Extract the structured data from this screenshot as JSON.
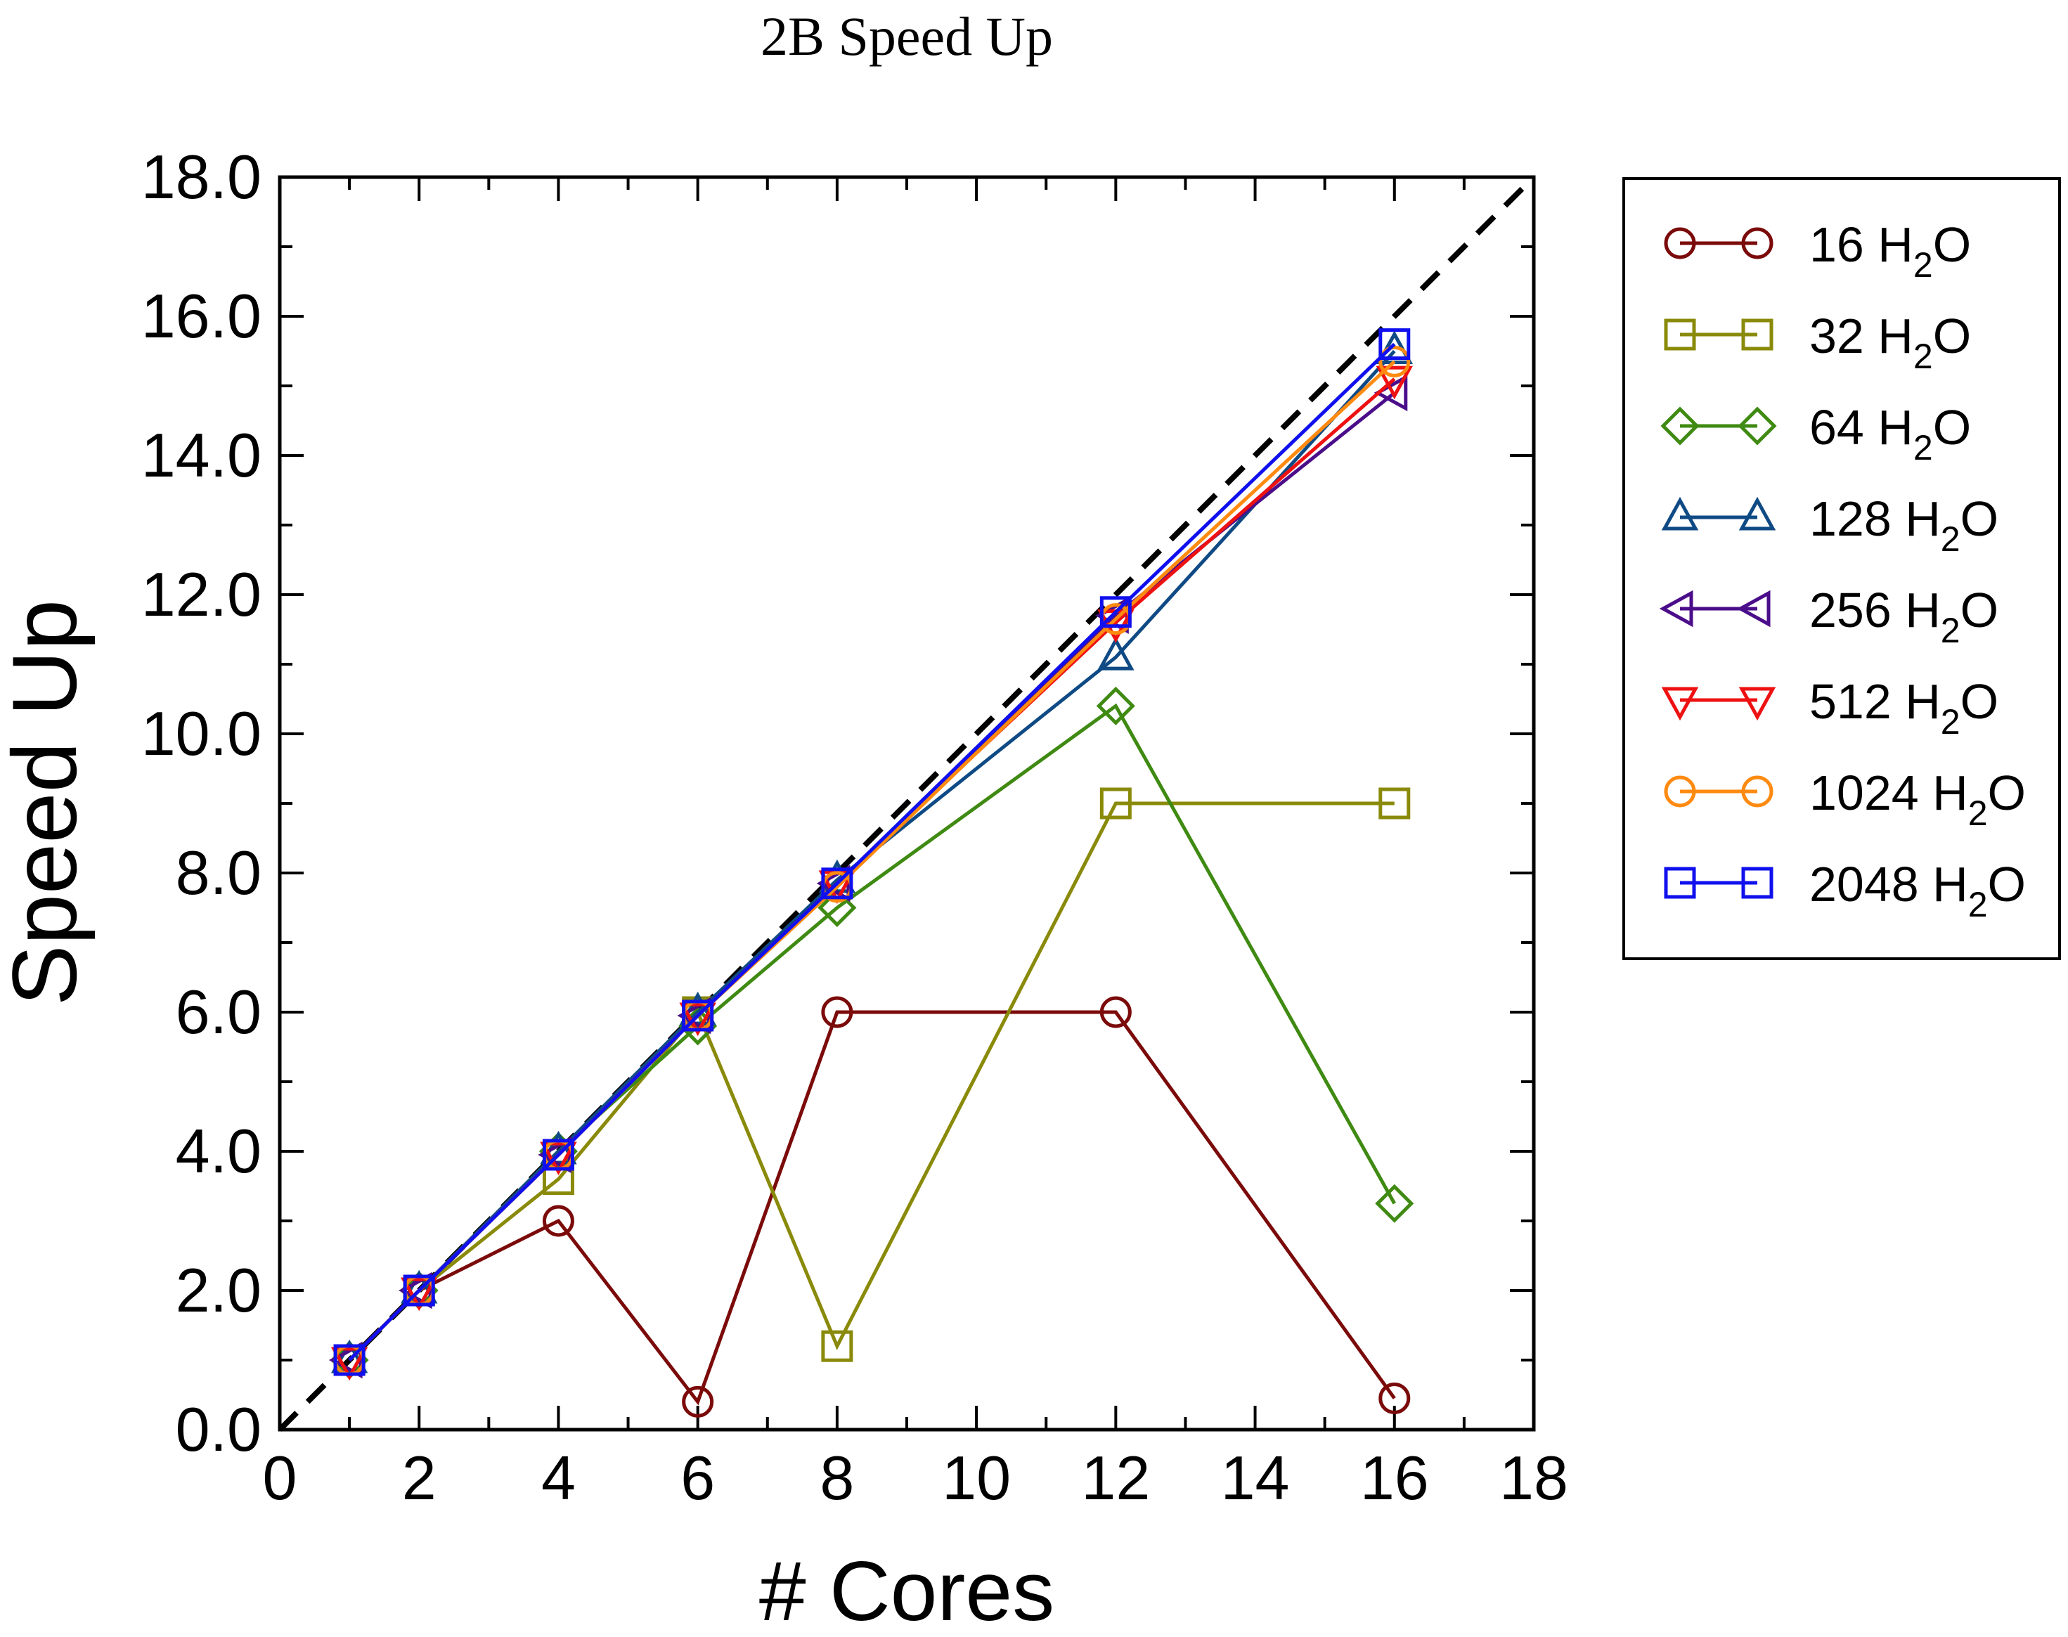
{
  "chart_data": {
    "type": "line",
    "title": "2B Speed Up",
    "xlabel": "# Cores",
    "ylabel": "Speed Up",
    "xlim": [
      0,
      18
    ],
    "ylim": [
      0,
      18
    ],
    "x_ticks": [
      "0",
      "2",
      "4",
      "6",
      "8",
      "10",
      "12",
      "14",
      "16",
      "18"
    ],
    "y_ticks": [
      "0.0",
      "2.0",
      "4.0",
      "6.0",
      "8.0",
      "10.0",
      "12.0",
      "14.0",
      "16.0",
      "18.0"
    ],
    "grid": false,
    "legend_position": "right",
    "reference_line": {
      "style": "dashed",
      "color": "#000000",
      "from": [
        0,
        0
      ],
      "to": [
        18,
        18
      ]
    },
    "x": [
      1,
      2,
      4,
      6,
      8,
      12,
      16
    ],
    "series": [
      {
        "name": "16 H2O",
        "label_num": "16",
        "label_sub": "2",
        "color": "#7b0a0a",
        "marker": "circle",
        "values": [
          1.0,
          2.0,
          3.0,
          0.4,
          6.0,
          6.0,
          0.45
        ]
      },
      {
        "name": "32 H2O",
        "label_num": "32",
        "label_sub": "2",
        "color": "#8a8a0a",
        "marker": "square",
        "values": [
          1.0,
          2.0,
          3.6,
          6.0,
          1.2,
          9.0,
          9.0
        ]
      },
      {
        "name": "64 H2O",
        "label_num": "64",
        "label_sub": "2",
        "color": "#3f8a12",
        "marker": "diamond",
        "values": [
          1.0,
          2.0,
          4.0,
          5.8,
          7.5,
          10.4,
          3.25
        ]
      },
      {
        "name": "128 H2O",
        "label_num": "128",
        "label_sub": "2",
        "color": "#0f4a85",
        "marker": "triangle-up",
        "values": [
          1.0,
          2.0,
          4.0,
          6.0,
          7.9,
          11.1,
          15.5
        ]
      },
      {
        "name": "256 H2O",
        "label_num": "256",
        "label_sub": "2",
        "color": "#4b0e8a",
        "marker": "triangle-left",
        "values": [
          1.0,
          2.0,
          3.95,
          5.95,
          7.85,
          11.7,
          14.9
        ]
      },
      {
        "name": "512 H2O",
        "label_num": "512",
        "label_sub": "2",
        "color": "#ee1111",
        "marker": "triangle-down",
        "values": [
          1.0,
          2.0,
          3.95,
          5.95,
          7.85,
          11.6,
          15.1
        ]
      },
      {
        "name": "1024 H2O",
        "label_num": "1024",
        "label_sub": "2",
        "color": "#ff8a10",
        "marker": "circle",
        "values": [
          1.0,
          2.0,
          3.95,
          5.95,
          7.8,
          11.65,
          15.35
        ]
      },
      {
        "name": "2048 H2O",
        "label_num": "2048",
        "label_sub": "2",
        "color": "#1010ee",
        "marker": "square",
        "values": [
          1.0,
          2.0,
          3.95,
          5.95,
          7.85,
          11.75,
          15.6
        ]
      }
    ]
  }
}
